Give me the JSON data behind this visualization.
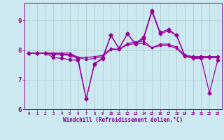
{
  "xlabel": "Windchill (Refroidissement éolien,°C)",
  "x": [
    0,
    1,
    2,
    3,
    4,
    5,
    6,
    7,
    8,
    9,
    10,
    11,
    12,
    13,
    14,
    15,
    16,
    17,
    18,
    19,
    20,
    21,
    22,
    23
  ],
  "series1": [
    7.9,
    7.9,
    7.9,
    7.9,
    7.9,
    7.9,
    7.75,
    7.75,
    7.78,
    7.82,
    8.05,
    8.02,
    8.22,
    8.28,
    8.3,
    8.08,
    8.2,
    8.2,
    8.1,
    7.82,
    7.78,
    7.78,
    7.78,
    7.78
  ],
  "series2": [
    7.9,
    7.9,
    7.9,
    7.88,
    7.87,
    7.85,
    7.75,
    7.68,
    7.72,
    7.78,
    8.02,
    8.02,
    8.18,
    8.22,
    8.22,
    8.08,
    8.15,
    8.15,
    8.06,
    7.78,
    7.74,
    7.74,
    7.74,
    7.74
  ],
  "series3": [
    7.9,
    7.9,
    7.9,
    7.85,
    7.85,
    7.82,
    7.72,
    6.35,
    7.52,
    7.75,
    8.5,
    8.05,
    8.55,
    8.22,
    8.45,
    9.35,
    8.6,
    8.7,
    8.5,
    7.82,
    7.78,
    7.78,
    7.78,
    7.78
  ],
  "series4": [
    7.9,
    7.9,
    7.9,
    7.75,
    7.72,
    7.68,
    7.65,
    6.35,
    7.55,
    7.7,
    8.5,
    8.05,
    8.55,
    8.2,
    8.4,
    9.3,
    8.55,
    8.65,
    8.5,
    7.8,
    7.72,
    7.72,
    6.55,
    7.65
  ],
  "line_color": "#990099",
  "bg_color": "#cce8f0",
  "grid_color": "#aacccc",
  "text_color": "#880088",
  "ylim": [
    6.0,
    9.6
  ],
  "xlim": [
    -0.5,
    23.5
  ],
  "yticks": [
    6,
    7,
    8,
    9
  ],
  "xticks": [
    0,
    1,
    2,
    3,
    4,
    5,
    6,
    7,
    8,
    9,
    10,
    11,
    12,
    13,
    14,
    15,
    16,
    17,
    18,
    19,
    20,
    21,
    22,
    23
  ]
}
